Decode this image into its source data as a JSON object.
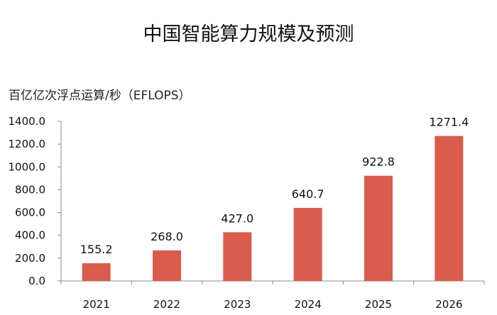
{
  "chart_data": {
    "type": "bar",
    "title": "中国智能算力规模及预测",
    "ylabel": "百亿亿次浮点运算/秒（EFLOPS）",
    "xlabel": "",
    "categories": [
      "2021",
      "2022",
      "2023",
      "2024",
      "2025",
      "2026"
    ],
    "values": [
      155.2,
      268.0,
      427.0,
      640.7,
      922.8,
      1271.4
    ],
    "data_labels": [
      "155.2",
      "268.0",
      "427.0",
      "640.7",
      "922.8",
      "1271.4"
    ],
    "ylim": [
      0,
      1400
    ],
    "yticks": [
      0,
      200,
      400,
      600,
      800,
      1000,
      1200,
      1400
    ],
    "ytick_labels": [
      "0.0",
      "200.0",
      "400.0",
      "600.0",
      "800.0",
      "1000.0",
      "1200.0",
      "1400.0"
    ],
    "bar_color": "#D95C4C",
    "axis_color": "#8c8c8c",
    "grid": false,
    "legend": "none"
  }
}
